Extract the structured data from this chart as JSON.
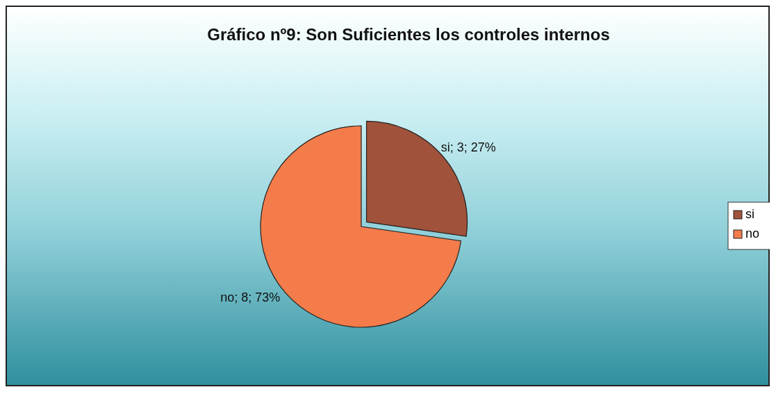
{
  "chart_data": {
    "type": "pie",
    "title": "Gráfico nº9: Son Suficientes los controles internos",
    "categories": [
      "si",
      "no"
    ],
    "values": [
      3,
      8
    ],
    "colors": [
      "#a0523a",
      "#f47c4a"
    ],
    "value_labels": [
      "si; 3; 27%",
      "no; 8; 73%"
    ],
    "legend": "right"
  }
}
